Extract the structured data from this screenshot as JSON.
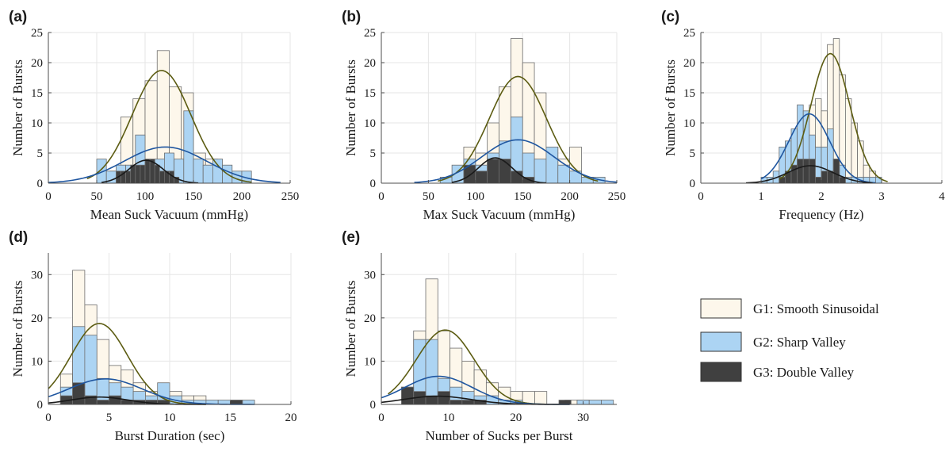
{
  "colors": {
    "G1_fill": "#fdf7eb",
    "G2_fill": "#acd4f3",
    "G3_fill": "#404040",
    "G1_curve": "#5c5c12",
    "G2_curve": "#1f56a0",
    "G3_curve": "#1a1a1a",
    "bar_edge": "#6e6e6e",
    "grid": "#e6e6e6",
    "axis": "#4d4d4d"
  },
  "legend": {
    "items": [
      {
        "label": "G1: Smooth Sinusoidal",
        "color": "#fdf7eb"
      },
      {
        "label": "G2: Sharp Valley",
        "color": "#acd4f3"
      },
      {
        "label": "G3: Double Valley",
        "color": "#404040"
      }
    ]
  },
  "chart_data": [
    {
      "panel_label": "(a)",
      "type": "bar",
      "xlabel": "Mean Suck Vacuum (mmHg)",
      "ylabel": "Number of Bursts",
      "xlim": [
        0,
        250
      ],
      "ylim": [
        0,
        25
      ],
      "xticks": [
        "0",
        "50",
        "100",
        "150",
        "200",
        "250"
      ],
      "yticks": [
        "0",
        "5",
        "10",
        "15",
        "20",
        "25"
      ],
      "grid": true,
      "series": [
        {
          "name": "G1: Smooth Sinusoidal",
          "bin_width": 12.5,
          "bin_starts": [
            50,
            62.5,
            75,
            87.5,
            100,
            112.5,
            125,
            137.5,
            150,
            162.5,
            175
          ],
          "counts": [
            1,
            2,
            11,
            14,
            17,
            22,
            16,
            15,
            5,
            4,
            1
          ],
          "fit": {
            "mean": 117,
            "amplitude": 18.7,
            "x_range": [
              40,
              210
            ]
          }
        },
        {
          "name": "G2: Sharp Valley",
          "bin_width": 10,
          "bin_starts": [
            50,
            60,
            70,
            80,
            90,
            100,
            110,
            120,
            130,
            140,
            150,
            160,
            170,
            180,
            190,
            200
          ],
          "counts": [
            4,
            2,
            3,
            3,
            8,
            3,
            4,
            5,
            4,
            12,
            4,
            3,
            4,
            3,
            2,
            2
          ],
          "fit": {
            "mean": 121,
            "amplitude": 6.0,
            "x_range": [
              0,
              240
            ]
          }
        },
        {
          "name": "G3: Double Valley",
          "bin_width": 5,
          "bin_starts": [
            70,
            75,
            80,
            85,
            90,
            95,
            100,
            105,
            110,
            115,
            120,
            125,
            130
          ],
          "counts": [
            2,
            2,
            2,
            3,
            3,
            3,
            4,
            4,
            3,
            2,
            2,
            2,
            1
          ],
          "fit": {
            "mean": 101,
            "amplitude": 3.8,
            "x_range": [
              55,
              155
            ]
          }
        }
      ]
    },
    {
      "panel_label": "(b)",
      "type": "bar",
      "xlabel": "Max Suck Vacuum (mmHg)",
      "ylabel": "Number of Bursts",
      "xlim": [
        0,
        250
      ],
      "ylim": [
        0,
        25
      ],
      "xticks": [
        "0",
        "50",
        "100",
        "150",
        "200",
        "250"
      ],
      "yticks": [
        "0",
        "5",
        "10",
        "15",
        "20",
        "25"
      ],
      "grid": true,
      "series": [
        {
          "name": "G1: Smooth Sinusoidal",
          "bin_width": 12.5,
          "bin_starts": [
            87.5,
            100,
            112.5,
            125,
            137.5,
            150,
            162.5,
            175,
            187.5,
            200
          ],
          "counts": [
            6,
            5,
            10,
            16,
            24,
            20,
            15,
            6,
            4,
            6
          ],
          "fit": {
            "mean": 145,
            "amplitude": 17.7,
            "x_range": [
              60,
              230
            ]
          }
        },
        {
          "name": "G2: Sharp Valley",
          "bin_width": 12.5,
          "bin_starts": [
            62.5,
            75,
            87.5,
            100,
            112.5,
            125,
            137.5,
            150,
            162.5,
            175,
            187.5,
            200,
            212.5,
            225
          ],
          "counts": [
            1,
            3,
            4,
            3,
            5,
            7,
            11,
            5,
            4,
            6,
            3,
            2,
            1,
            1
          ],
          "fit": {
            "mean": 145,
            "amplitude": 7.2,
            "x_range": [
              35,
              250
            ]
          }
        },
        {
          "name": "G3: Double Valley",
          "bin_width": 12.5,
          "bin_starts": [
            87.5,
            100,
            112.5,
            125,
            137.5,
            150
          ],
          "counts": [
            3,
            2,
            4,
            4,
            2,
            1
          ],
          "fit": {
            "mean": 121,
            "amplitude": 4.2,
            "x_range": [
              75,
              175
            ]
          }
        }
      ]
    },
    {
      "panel_label": "(c)",
      "type": "bar",
      "xlabel": "Frequency (Hz)",
      "ylabel": "Number of Bursts",
      "xlim": [
        0,
        4
      ],
      "ylim": [
        0,
        25
      ],
      "xticks": [
        "0",
        "1",
        "2",
        "3",
        "4"
      ],
      "yticks": [
        "0",
        "5",
        "10",
        "15",
        "20",
        "25"
      ],
      "grid": true,
      "series": [
        {
          "name": "G1: Smooth Sinusoidal",
          "bin_width": 0.1,
          "bin_starts": [
            1.5,
            1.6,
            1.7,
            1.8,
            1.9,
            2.0,
            2.1,
            2.2,
            2.3,
            2.4,
            2.5,
            2.6,
            2.7,
            2.8,
            2.9
          ],
          "counts": [
            1,
            3,
            4,
            13,
            14,
            12,
            23,
            24,
            18,
            14,
            10,
            7,
            3,
            2,
            1
          ],
          "fit": {
            "mean": 2.15,
            "amplitude": 21.5,
            "x_range": [
              1.3,
              3.1
            ]
          }
        },
        {
          "name": "G2: Sharp Valley",
          "bin_width": 0.1,
          "bin_starts": [
            1.0,
            1.1,
            1.2,
            1.3,
            1.4,
            1.5,
            1.6,
            1.7,
            1.8,
            1.9,
            2.0,
            2.1,
            2.2,
            2.3,
            2.4,
            2.5,
            2.6,
            2.7,
            2.8,
            2.9
          ],
          "counts": [
            1,
            1,
            2,
            6,
            7,
            9,
            13,
            12,
            8,
            6,
            6,
            9,
            4,
            3,
            1,
            1,
            1,
            1,
            1,
            1
          ],
          "fit": {
            "mean": 1.8,
            "amplitude": 11.5,
            "x_range": [
              1.0,
              2.9
            ]
          }
        },
        {
          "name": "G3: Double Valley",
          "bin_width": 0.1,
          "bin_starts": [
            1.3,
            1.4,
            1.5,
            1.6,
            1.7,
            1.8,
            1.9,
            2.0,
            2.1,
            2.2,
            2.3
          ],
          "counts": [
            1,
            2,
            3,
            4,
            4,
            4,
            1,
            2,
            2,
            4,
            1
          ],
          "fit": {
            "mean": 1.82,
            "amplitude": 2.9,
            "x_range": [
              0.75,
              2.85
            ]
          }
        }
      ]
    },
    {
      "panel_label": "(d)",
      "type": "bar",
      "xlabel": "Burst Duration (sec)",
      "ylabel": "Number of Bursts",
      "xlim": [
        0,
        20
      ],
      "ylim": [
        0,
        35
      ],
      "xticks": [
        "0",
        "5",
        "10",
        "15",
        "20"
      ],
      "yticks": [
        "0",
        "10",
        "20",
        "30"
      ],
      "grid": true,
      "series": [
        {
          "name": "G1: Smooth Sinusoidal",
          "bin_width": 1,
          "bin_starts": [
            1,
            2,
            3,
            4,
            5,
            6,
            7,
            8,
            9,
            10,
            11,
            12
          ],
          "counts": [
            7,
            31,
            23,
            15,
            9,
            8,
            5,
            3,
            3,
            3,
            2,
            2
          ],
          "fit": {
            "mean": 4.2,
            "amplitude": 18.7,
            "x_range": [
              0,
              13
            ]
          }
        },
        {
          "name": "G2: Sharp Valley",
          "bin_width": 1,
          "bin_starts": [
            1,
            2,
            3,
            4,
            5,
            6,
            7,
            8,
            9,
            10,
            11,
            12,
            13,
            14,
            15,
            16
          ],
          "counts": [
            4,
            18,
            16,
            6,
            5,
            4,
            3,
            2,
            5,
            2,
            1,
            1,
            1,
            1,
            1,
            1
          ],
          "fit": {
            "mean": 4.7,
            "amplitude": 5.9,
            "x_range": [
              0,
              17
            ]
          }
        },
        {
          "name": "G3: Double Valley",
          "bin_width": 1,
          "bin_starts": [
            1,
            2,
            3,
            4,
            5,
            6,
            7,
            8,
            9,
            15
          ],
          "counts": [
            2,
            5,
            2,
            1,
            2,
            1,
            1,
            1,
            1,
            1
          ],
          "fit": {
            "mean": 4.2,
            "amplitude": 1.7,
            "x_range": [
              0,
              13
            ]
          }
        }
      ]
    },
    {
      "panel_label": "(e)",
      "type": "bar",
      "xlabel": "Number of Sucks per Burst",
      "ylabel": "Number of Bursts",
      "xlim": [
        0,
        35
      ],
      "ylim": [
        0,
        35
      ],
      "xticks": [
        "0",
        "10",
        "20",
        "30"
      ],
      "yticks": [
        "0",
        "10",
        "20",
        "30"
      ],
      "grid": true,
      "series": [
        {
          "name": "G1: Smooth Sinusoidal",
          "bin_width": 1.8,
          "bin_starts": [
            3,
            4.8,
            6.6,
            8.4,
            10.2,
            12,
            13.8,
            15.6,
            17.4,
            19.2,
            21,
            22.8,
            27.3,
            29.1
          ],
          "counts": [
            4,
            17,
            29,
            17,
            13,
            10,
            8,
            5,
            4,
            3,
            3,
            3,
            1,
            1
          ],
          "fit": {
            "mean": 9.5,
            "amplitude": 17.2,
            "x_range": [
              1,
              25
            ]
          }
        },
        {
          "name": "G2: Sharp Valley",
          "bin_width": 1.8,
          "bin_starts": [
            3,
            4.8,
            6.6,
            8.4,
            10.2,
            12,
            13.8,
            15.6,
            17.4,
            19.2,
            29.1,
            30.9,
            32.7
          ],
          "counts": [
            2,
            15,
            15,
            6,
            4,
            3,
            2,
            2,
            1,
            1,
            1,
            1,
            1
          ],
          "fit": {
            "mean": 8.5,
            "amplitude": 6.5,
            "x_range": [
              0,
              28
            ]
          }
        },
        {
          "name": "G3: Double Valley",
          "bin_width": 1.8,
          "bin_starts": [
            3,
            4.8,
            6.6,
            8.4,
            10.2,
            12,
            13.8,
            26.4
          ],
          "counts": [
            4,
            3,
            2,
            3,
            1,
            1,
            1,
            1
          ],
          "fit": {
            "mean": 8.3,
            "amplitude": 1.9,
            "x_range": [
              0,
              28
            ]
          }
        }
      ]
    }
  ]
}
